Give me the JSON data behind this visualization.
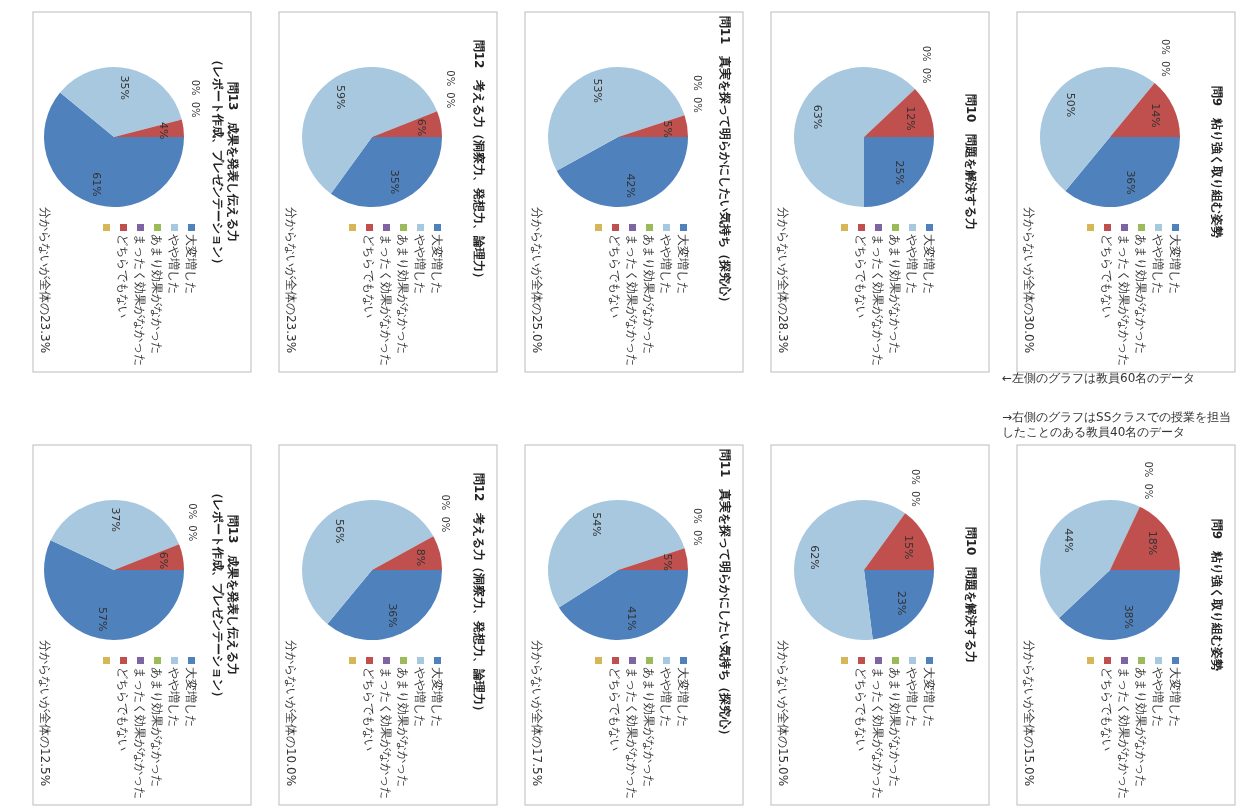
{
  "chart_data": [
    {
      "type": "pie",
      "title": "問9　粘り強く取り組む姿勢",
      "categories": [
        "大変増した",
        "やや増した",
        "あまり効果がなかった",
        "まったく効果がなかった",
        "どちらでもない",
        null
      ],
      "values": [
        36,
        50,
        0,
        0,
        14,
        0
      ],
      "value_labels": [
        "36%",
        "50%",
        "0%",
        "0%",
        "14%",
        null
      ],
      "colors": [
        "#4f81bd",
        "#a8c8e0",
        "#9bbb59",
        "#8064a2",
        "#c0504d",
        "#d6b656"
      ],
      "legend": "right",
      "annotations": [
        "分からないが全体の30.0%",
        "←左側のグラフは教員60名のデータ"
      ]
    },
    {
      "type": "pie",
      "title": "問9　粘り強く取り組む姿勢",
      "categories": [
        "大変増した",
        "やや増した",
        "あまり効果がなかった",
        "まったく効果がなかった",
        "どちらでもない",
        null
      ],
      "values": [
        38,
        44,
        0,
        0,
        18,
        0
      ],
      "value_labels": [
        "38%",
        "44%",
        "0%",
        "0%",
        "18%",
        null
      ],
      "colors": [
        "#4f81bd",
        "#a8c8e0",
        "#9bbb59",
        "#8064a2",
        "#c0504d",
        "#d6b656"
      ],
      "legend": "right",
      "annotations": [
        "分からないが全体の15.0%",
        "→右側のグラフはSSクラスでの授業を担当したことのある教員40名のデータ"
      ]
    },
    {
      "type": "pie",
      "title": "問10　問題を解決する力",
      "categories": [
        "大変増した",
        "やや増した",
        "あまり効果がなかった",
        "まったく効果がなかった",
        "どちらでもない",
        null
      ],
      "values": [
        25,
        63,
        0,
        0,
        12,
        0
      ],
      "value_labels": [
        "25%",
        "63%",
        "0%",
        "0%",
        "12%",
        null
      ],
      "colors": [
        "#4f81bd",
        "#a8c8e0",
        "#9bbb59",
        "#8064a2",
        "#c0504d",
        "#d6b656"
      ],
      "legend": "right",
      "annotations": [
        "分からないが全体の28.3%"
      ]
    },
    {
      "type": "pie",
      "title": "問10　問題を解決する力",
      "categories": [
        "大変増した",
        "やや増した",
        "あまり効果がなかった",
        "まったく効果がなかった",
        "どちらでもない",
        null
      ],
      "values": [
        23,
        62,
        0,
        0,
        15,
        0
      ],
      "value_labels": [
        "23%",
        "62%",
        "0%",
        "0%",
        "15%",
        null
      ],
      "colors": [
        "#4f81bd",
        "#a8c8e0",
        "#9bbb59",
        "#8064a2",
        "#c0504d",
        "#d6b656"
      ],
      "legend": "right",
      "annotations": [
        "分からないが全体の15.0%"
      ]
    },
    {
      "type": "pie",
      "title": "問11　真実を探って明らかにしたい気持ち（探究心）",
      "categories": [
        "大変増した",
        "やや増した",
        "あまり効果がなかった",
        "まったく効果がなかった",
        "どちらでもない",
        null
      ],
      "values": [
        42,
        53,
        0,
        0,
        5,
        0
      ],
      "value_labels": [
        "42%",
        "53%",
        "0%",
        "0%",
        "5%",
        null
      ],
      "colors": [
        "#4f81bd",
        "#a8c8e0",
        "#9bbb59",
        "#8064a2",
        "#c0504d",
        "#d6b656"
      ],
      "legend": "right",
      "annotations": [
        "分からないが全体の25.0%"
      ]
    },
    {
      "type": "pie",
      "title": "問11　真実を探って明らかにしたい気持ち（探究心）",
      "categories": [
        "大変増した",
        "やや増した",
        "あまり効果がなかった",
        "まったく効果がなかった",
        "どちらでもない",
        null
      ],
      "values": [
        41,
        54,
        0,
        0,
        5,
        0
      ],
      "value_labels": [
        "41%",
        "54%",
        "0%",
        "0%",
        "5%",
        null
      ],
      "colors": [
        "#4f81bd",
        "#a8c8e0",
        "#9bbb59",
        "#8064a2",
        "#c0504d",
        "#d6b656"
      ],
      "legend": "right",
      "annotations": [
        "分からないが全体の17.5%"
      ]
    },
    {
      "type": "pie",
      "title": "問12　考える力（洞察力、発想力、論理力）",
      "categories": [
        "大変増した",
        "やや増した",
        "あまり効果がなかった",
        "まったく効果がなかった",
        "どちらでもない",
        null
      ],
      "values": [
        35,
        59,
        0,
        0,
        6,
        0
      ],
      "value_labels": [
        "35%",
        "59%",
        "0%",
        "0%",
        "6%",
        null
      ],
      "colors": [
        "#4f81bd",
        "#a8c8e0",
        "#9bbb59",
        "#8064a2",
        "#c0504d",
        "#d6b656"
      ],
      "legend": "right",
      "annotations": [
        "分からないが全体の23.3%"
      ]
    },
    {
      "type": "pie",
      "title": "問12　考える力（洞察力、発想力、論理力）",
      "categories": [
        "大変増した",
        "やや増した",
        "あまり効果がなかった",
        "まったく効果がなかった",
        "どちらでもない",
        null
      ],
      "values": [
        36,
        56,
        0,
        0,
        8,
        0
      ],
      "value_labels": [
        "36%",
        "56%",
        "0%",
        "0%",
        "8%",
        null
      ],
      "colors": [
        "#4f81bd",
        "#a8c8e0",
        "#9bbb59",
        "#8064a2",
        "#c0504d",
        "#d6b656"
      ],
      "legend": "right",
      "annotations": [
        "分からないが全体の10.0%"
      ]
    },
    {
      "type": "pie",
      "title": "問13　成果を発表し伝える力（レポート作成、プレゼンテーション）",
      "categories": [
        "大変増した",
        "やや増した",
        "あまり効果がなかった",
        "まったく効果がなかった",
        "どちらでもない",
        null
      ],
      "values": [
        61,
        35,
        0,
        0,
        4,
        0
      ],
      "value_labels": [
        "61%",
        "35%",
        "0%",
        "0%",
        "4%",
        null
      ],
      "colors": [
        "#4f81bd",
        "#a8c8e0",
        "#9bbb59",
        "#8064a2",
        "#c0504d",
        "#d6b656"
      ],
      "legend": "right",
      "annotations": [
        "分からないが全体の23.3%"
      ]
    },
    {
      "type": "pie",
      "title": "問13　成果を発表し伝える力（レポート作成、プレゼンテーション）",
      "categories": [
        "大変増した",
        "やや増した",
        "あまり効果がなかった",
        "まったく効果がなかった",
        "どちらでもない",
        null
      ],
      "values": [
        57,
        37,
        0,
        0,
        6,
        0
      ],
      "value_labels": [
        "57%",
        "37%",
        "0%",
        "0%",
        "6%",
        null
      ],
      "colors": [
        "#4f81bd",
        "#a8c8e0",
        "#9bbb59",
        "#8064a2",
        "#c0504d",
        "#d6b656"
      ],
      "legend": "right",
      "annotations": [
        "分からないが全体の12.5%"
      ]
    }
  ]
}
